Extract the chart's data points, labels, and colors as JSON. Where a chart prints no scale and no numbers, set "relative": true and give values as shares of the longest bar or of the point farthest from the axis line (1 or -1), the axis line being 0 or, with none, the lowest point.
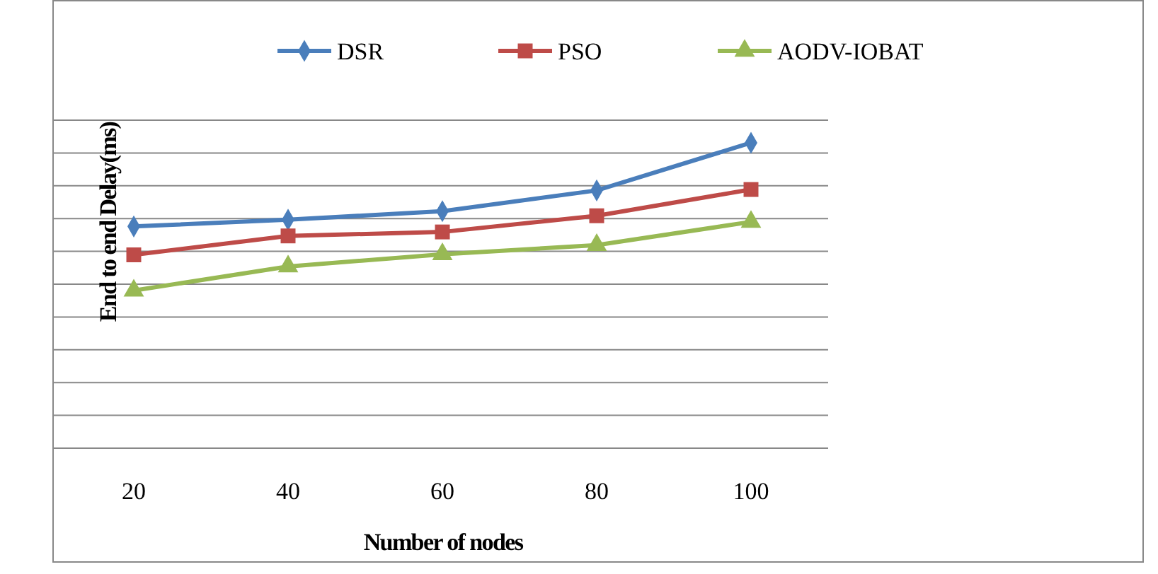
{
  "chart_data": {
    "type": "line",
    "xlabel": "Number of nodes",
    "ylabel": "End to end Delay(ms)",
    "categories": [
      "20",
      "40",
      "60",
      "80",
      "100"
    ],
    "relative": true,
    "grid": "y",
    "legend": "top",
    "series": [
      {
        "name": "DSR",
        "color": "#4a7ebb",
        "marker": "diamond",
        "values": [
          0.726,
          0.748,
          0.776,
          0.844,
          1
        ]
      },
      {
        "name": "PSO",
        "color": "#be4b48",
        "marker": "square",
        "values": [
          0.633,
          0.695,
          0.708,
          0.761,
          0.847
        ]
      },
      {
        "name": "AODV-IOBAT",
        "color": "#98b954",
        "marker": "triangle",
        "values": [
          0.516,
          0.595,
          0.635,
          0.665,
          0.741
        ]
      }
    ]
  }
}
